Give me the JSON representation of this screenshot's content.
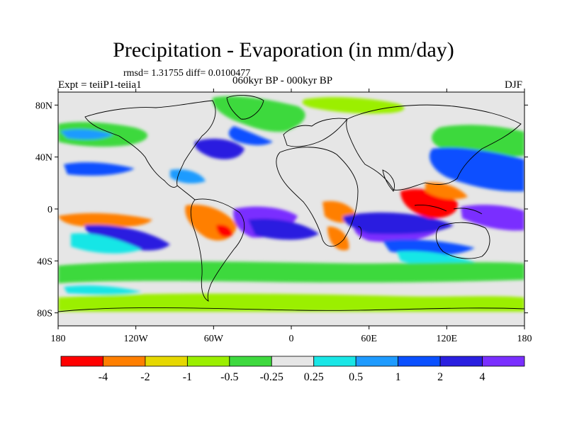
{
  "title": "Precipitation - Evaporation (in mm/day)",
  "stats_line": "rmsd= 1.31755  diff= 0.0100477",
  "experiment": "Expt = teiiP1-teiia1",
  "period": "060kyr BP - 000kyr BP",
  "season": "DJF",
  "axes": {
    "lat_ticks": [
      "80N",
      "40N",
      "0",
      "40S",
      "80S"
    ],
    "lat_values": [
      80,
      40,
      0,
      -40,
      -80
    ],
    "lon_ticks": [
      "180",
      "120W",
      "60W",
      "0",
      "60E",
      "120E",
      "180"
    ],
    "lon_values": [
      -180,
      -120,
      -60,
      0,
      60,
      120,
      180
    ],
    "lat_range": [
      -90,
      90
    ],
    "lon_range": [
      -180,
      180
    ]
  },
  "colorbar": {
    "labels": [
      "-4",
      "-2",
      "-1",
      "-0.5",
      "-0.25",
      "0.25",
      "0.5",
      "1",
      "2",
      "4"
    ],
    "colors": [
      "#ff0000",
      "#ff7f00",
      "#e6d800",
      "#9bef00",
      "#3ed93e",
      "#e6e6e6",
      "#19e6e6",
      "#1e9bff",
      "#0a50ff",
      "#2a1fe0",
      "#7a2fff"
    ]
  },
  "map_colors": {
    "background": "#e6e6e6",
    "coast": "#000000"
  }
}
